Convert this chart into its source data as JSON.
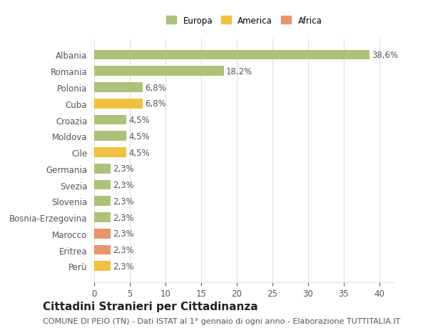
{
  "categories": [
    "Albania",
    "Romania",
    "Polonia",
    "Cuba",
    "Croazia",
    "Moldova",
    "Cile",
    "Germania",
    "Svezia",
    "Slovenia",
    "Bosnia-Erzegovina",
    "Marocco",
    "Eritrea",
    "Perù"
  ],
  "values": [
    38.6,
    18.2,
    6.8,
    6.8,
    4.5,
    4.5,
    4.5,
    2.3,
    2.3,
    2.3,
    2.3,
    2.3,
    2.3,
    2.3
  ],
  "bar_colors": [
    "#adc178",
    "#adc178",
    "#adc178",
    "#f0c040",
    "#adc178",
    "#adc178",
    "#f0c040",
    "#adc178",
    "#adc178",
    "#adc178",
    "#adc178",
    "#e8956d",
    "#e8956d",
    "#f0c040"
  ],
  "labels": [
    "38,6%",
    "18,2%",
    "6,8%",
    "6,8%",
    "4,5%",
    "4,5%",
    "4,5%",
    "2,3%",
    "2,3%",
    "2,3%",
    "2,3%",
    "2,3%",
    "2,3%",
    "2,3%"
  ],
  "xlim": [
    0,
    42
  ],
  "xticks": [
    0,
    5,
    10,
    15,
    20,
    25,
    30,
    35,
    40
  ],
  "title": "Cittadini Stranieri per Cittadinanza",
  "subtitle": "COMUNE DI PEIO (TN) - Dati ISTAT al 1° gennaio di ogni anno - Elaborazione TUTTITALIA.IT",
  "legend": [
    {
      "label": "Europa",
      "color": "#adc178"
    },
    {
      "label": "America",
      "color": "#f0c040"
    },
    {
      "label": "Africa",
      "color": "#e8956d"
    }
  ],
  "background_color": "#ffffff",
  "grid_color": "#e0e0e0",
  "bar_height": 0.6,
  "label_fontsize": 8.5,
  "tick_fontsize": 8.5,
  "title_fontsize": 11,
  "subtitle_fontsize": 8
}
